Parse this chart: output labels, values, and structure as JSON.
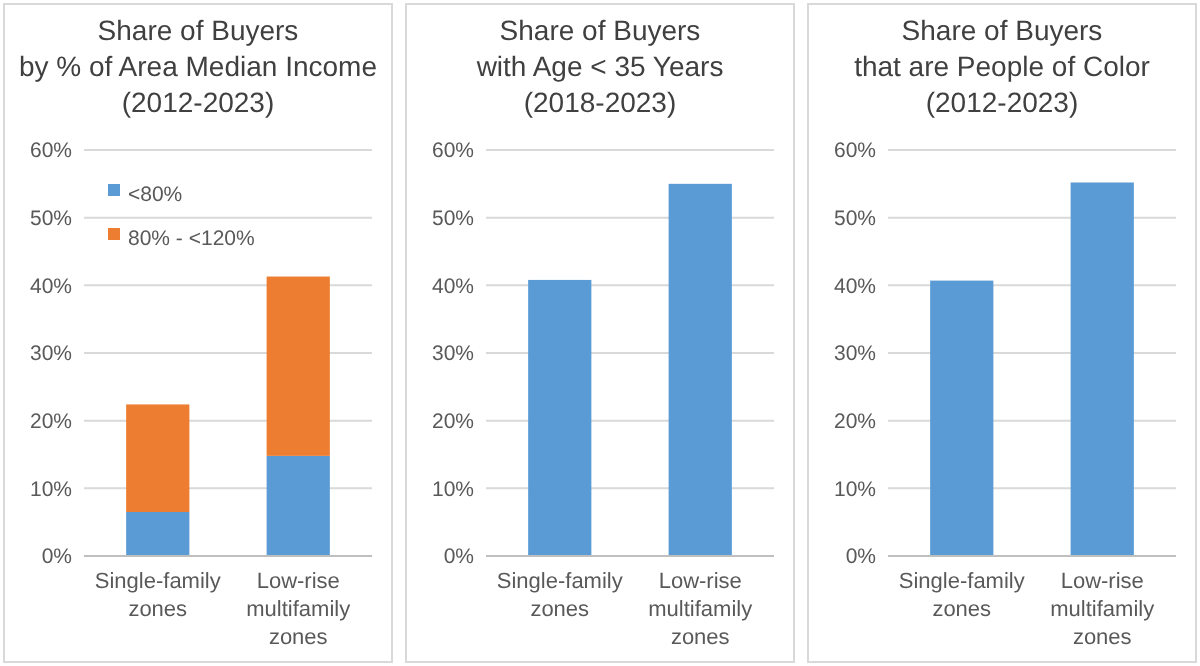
{
  "chart_data": [
    {
      "type": "bar",
      "title": "Share of Buyers\nby % of Area Median Income\n(2012-2023)",
      "categories": [
        "Single-family\nzones",
        "Low-rise\nmultifamily\nzones"
      ],
      "stacked": true,
      "series": [
        {
          "name": "<80%",
          "color": "#5b9bd5",
          "values": [
            6.5,
            14.8
          ]
        },
        {
          "name": "80% - <120%",
          "color": "#ed7d31",
          "values": [
            15.9,
            26.5
          ]
        }
      ],
      "ylim": [
        0,
        60
      ],
      "yticks": [
        {
          "value": 0,
          "label": "0%"
        },
        {
          "value": 10,
          "label": "10%"
        },
        {
          "value": 20,
          "label": "20%"
        },
        {
          "value": 30,
          "label": "30%"
        },
        {
          "value": 40,
          "label": "40%"
        },
        {
          "value": 50,
          "label": "50%"
        },
        {
          "value": 60,
          "label": "60%"
        }
      ],
      "grid": "y",
      "legend": "top left"
    },
    {
      "type": "bar",
      "title": "Share of Buyers\nwith Age < 35 Years\n(2018-2023)",
      "categories": [
        "Single-family\nzones",
        "Low-rise\nmultifamily\nzones"
      ],
      "series": [
        {
          "color": "#5b9bd5",
          "values": [
            40.8,
            55.0
          ]
        }
      ],
      "ylim": [
        0,
        60
      ],
      "yticks": [
        {
          "value": 0,
          "label": "0%"
        },
        {
          "value": 10,
          "label": "10%"
        },
        {
          "value": 20,
          "label": "20%"
        },
        {
          "value": 30,
          "label": "30%"
        },
        {
          "value": 40,
          "label": "40%"
        },
        {
          "value": 50,
          "label": "50%"
        },
        {
          "value": 60,
          "label": "60%"
        }
      ],
      "grid": "y"
    },
    {
      "type": "bar",
      "title": "Share of Buyers\nthat are People of Color\n(2012-2023)",
      "categories": [
        "Single-family\nzones",
        "Low-rise\nmultifamily\nzones"
      ],
      "series": [
        {
          "color": "#5b9bd5",
          "values": [
            40.7,
            55.2
          ]
        }
      ],
      "ylim": [
        0,
        60
      ],
      "yticks": [
        {
          "value": 0,
          "label": "0%"
        },
        {
          "value": 10,
          "label": "10%"
        },
        {
          "value": 20,
          "label": "20%"
        },
        {
          "value": 30,
          "label": "30%"
        },
        {
          "value": 40,
          "label": "40%"
        },
        {
          "value": 50,
          "label": "50%"
        },
        {
          "value": 60,
          "label": "60%"
        }
      ],
      "grid": "y"
    }
  ]
}
